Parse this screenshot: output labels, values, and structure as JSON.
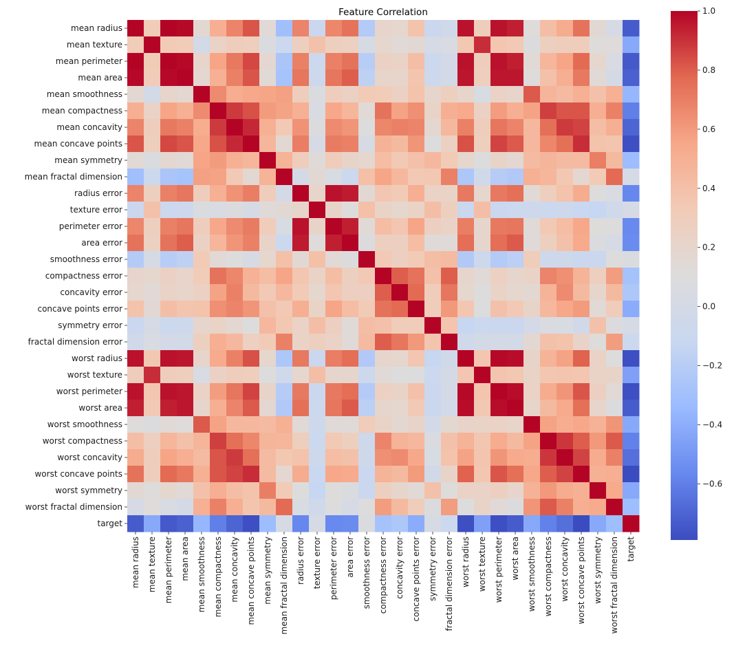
{
  "chart_data": {
    "type": "heatmap",
    "title": "Feature Correlation",
    "xlabel": "",
    "ylabel": "",
    "colormap": "coolwarm",
    "colormap_stops": [
      "#3b4cc0",
      "#6788ee",
      "#9abbff",
      "#c9d7f0",
      "#dddcdc",
      "#f2cbb7",
      "#f7a889",
      "#e26952",
      "#b40426"
    ],
    "vmin": -0.79,
    "vmax": 1.0,
    "colorbar_ticks": [
      1.0,
      0.8,
      0.6,
      0.4,
      0.2,
      0.0,
      -0.2,
      -0.4,
      -0.6
    ],
    "colorbar_tick_labels": [
      "1.0",
      "0.8",
      "0.6",
      "0.4",
      "0.2",
      "0.0",
      "−0.2",
      "−0.4",
      "−0.6"
    ],
    "colorbar_position": "right",
    "labels": [
      "mean radius",
      "mean texture",
      "mean perimeter",
      "mean area",
      "mean smoothness",
      "mean compactness",
      "mean concavity",
      "mean concave points",
      "mean symmetry",
      "mean fractal dimension",
      "radius error",
      "texture error",
      "perimeter error",
      "area error",
      "smoothness error",
      "compactness error",
      "concavity error",
      "concave points error",
      "symmetry error",
      "fractal dimension error",
      "worst radius",
      "worst texture",
      "worst perimeter",
      "worst area",
      "worst smoothness",
      "worst compactness",
      "worst concavity",
      "worst concave points",
      "worst symmetry",
      "worst fractal dimension",
      "target"
    ],
    "matrix": [
      [
        1.0,
        0.32,
        1.0,
        0.99,
        0.17,
        0.51,
        0.68,
        0.82,
        0.15,
        -0.31,
        0.68,
        -0.1,
        0.67,
        0.74,
        -0.22,
        0.21,
        0.19,
        0.38,
        -0.1,
        -0.04,
        0.97,
        0.3,
        0.97,
        0.94,
        0.12,
        0.41,
        0.53,
        0.74,
        0.16,
        0.01,
        -0.73
      ],
      [
        0.32,
        1.0,
        0.33,
        0.32,
        -0.02,
        0.24,
        0.3,
        0.29,
        0.07,
        -0.08,
        0.28,
        0.39,
        0.28,
        0.26,
        0.01,
        0.19,
        0.14,
        0.16,
        0.01,
        0.05,
        0.35,
        0.91,
        0.36,
        0.34,
        0.08,
        0.28,
        0.3,
        0.3,
        0.11,
        0.12,
        -0.42
      ],
      [
        1.0,
        0.33,
        1.0,
        0.99,
        0.21,
        0.56,
        0.72,
        0.85,
        0.18,
        -0.26,
        0.69,
        -0.09,
        0.69,
        0.74,
        -0.2,
        0.25,
        0.23,
        0.41,
        -0.08,
        -0.01,
        0.97,
        0.3,
        0.97,
        0.94,
        0.15,
        0.46,
        0.56,
        0.77,
        0.19,
        0.05,
        -0.74
      ],
      [
        0.99,
        0.32,
        0.99,
        1.0,
        0.18,
        0.5,
        0.69,
        0.82,
        0.15,
        -0.28,
        0.73,
        -0.07,
        0.73,
        0.8,
        -0.17,
        0.21,
        0.21,
        0.37,
        -0.07,
        -0.02,
        0.96,
        0.29,
        0.96,
        0.96,
        0.12,
        0.39,
        0.51,
        0.72,
        0.14,
        0.0,
        -0.71
      ],
      [
        0.17,
        -0.02,
        0.21,
        0.18,
        1.0,
        0.66,
        0.52,
        0.55,
        0.56,
        0.58,
        0.3,
        0.07,
        0.3,
        0.25,
        0.33,
        0.32,
        0.25,
        0.38,
        0.2,
        0.28,
        0.21,
        0.04,
        0.24,
        0.21,
        0.81,
        0.47,
        0.43,
        0.5,
        0.39,
        0.5,
        -0.36
      ],
      [
        0.51,
        0.24,
        0.56,
        0.5,
        0.66,
        1.0,
        0.88,
        0.83,
        0.6,
        0.57,
        0.5,
        0.05,
        0.55,
        0.46,
        0.14,
        0.74,
        0.57,
        0.64,
        0.23,
        0.51,
        0.54,
        0.25,
        0.59,
        0.51,
        0.57,
        0.87,
        0.82,
        0.82,
        0.51,
        0.69,
        -0.6
      ],
      [
        0.68,
        0.3,
        0.72,
        0.69,
        0.52,
        0.88,
        1.0,
        0.92,
        0.5,
        0.34,
        0.63,
        0.08,
        0.66,
        0.62,
        0.1,
        0.67,
        0.69,
        0.68,
        0.18,
        0.45,
        0.69,
        0.3,
        0.73,
        0.68,
        0.45,
        0.75,
        0.88,
        0.86,
        0.41,
        0.51,
        -0.7
      ],
      [
        0.82,
        0.29,
        0.85,
        0.82,
        0.55,
        0.83,
        0.92,
        1.0,
        0.46,
        0.17,
        0.7,
        0.02,
        0.71,
        0.69,
        0.03,
        0.49,
        0.44,
        0.62,
        0.1,
        0.26,
        0.83,
        0.29,
        0.86,
        0.81,
        0.45,
        0.67,
        0.75,
        0.91,
        0.38,
        0.37,
        -0.78
      ],
      [
        0.15,
        0.07,
        0.18,
        0.15,
        0.56,
        0.6,
        0.5,
        0.46,
        1.0,
        0.48,
        0.3,
        0.13,
        0.31,
        0.22,
        0.19,
        0.42,
        0.34,
        0.39,
        0.45,
        0.33,
        0.19,
        0.09,
        0.22,
        0.18,
        0.43,
        0.47,
        0.43,
        0.43,
        0.7,
        0.44,
        -0.33
      ],
      [
        -0.31,
        -0.08,
        -0.26,
        -0.28,
        0.58,
        0.57,
        0.34,
        0.17,
        0.48,
        1.0,
        0.0,
        0.16,
        0.04,
        -0.09,
        0.4,
        0.56,
        0.45,
        0.34,
        0.35,
        0.69,
        -0.25,
        -0.05,
        -0.21,
        -0.23,
        0.5,
        0.46,
        0.35,
        0.18,
        0.33,
        0.77,
        0.01
      ],
      [
        0.68,
        0.28,
        0.69,
        0.73,
        0.3,
        0.5,
        0.63,
        0.7,
        0.3,
        0.0,
        1.0,
        0.21,
        0.97,
        0.95,
        0.16,
        0.36,
        0.33,
        0.51,
        0.24,
        0.23,
        0.72,
        0.19,
        0.72,
        0.75,
        0.14,
        0.29,
        0.38,
        0.53,
        0.09,
        0.05,
        -0.57
      ],
      [
        -0.1,
        0.39,
        -0.09,
        -0.07,
        0.07,
        0.05,
        0.08,
        0.02,
        0.13,
        0.16,
        0.21,
        1.0,
        0.22,
        0.11,
        0.4,
        0.23,
        0.19,
        0.23,
        0.41,
        0.28,
        -0.11,
        0.41,
        -0.1,
        -0.08,
        -0.07,
        -0.09,
        -0.07,
        -0.12,
        -0.13,
        -0.05,
        0.01
      ],
      [
        0.67,
        0.28,
        0.69,
        0.73,
        0.3,
        0.55,
        0.66,
        0.71,
        0.31,
        0.04,
        0.97,
        0.22,
        1.0,
        0.94,
        0.15,
        0.42,
        0.36,
        0.56,
        0.27,
        0.24,
        0.7,
        0.2,
        0.72,
        0.73,
        0.13,
        0.34,
        0.42,
        0.55,
        0.11,
        0.09,
        -0.56
      ],
      [
        0.74,
        0.26,
        0.74,
        0.8,
        0.25,
        0.46,
        0.62,
        0.69,
        0.22,
        -0.09,
        0.95,
        0.11,
        0.94,
        1.0,
        0.08,
        0.28,
        0.27,
        0.42,
        0.13,
        0.13,
        0.76,
        0.2,
        0.76,
        0.81,
        0.13,
        0.28,
        0.39,
        0.54,
        0.07,
        0.02,
        -0.55
      ],
      [
        -0.22,
        0.01,
        -0.2,
        -0.17,
        0.33,
        0.14,
        0.1,
        0.03,
        0.19,
        0.4,
        0.16,
        0.4,
        0.15,
        0.08,
        1.0,
        0.34,
        0.27,
        0.33,
        0.41,
        0.43,
        -0.23,
        -0.07,
        -0.22,
        -0.18,
        0.31,
        -0.06,
        -0.06,
        -0.1,
        -0.11,
        0.1,
        0.07
      ],
      [
        0.21,
        0.19,
        0.25,
        0.21,
        0.32,
        0.74,
        0.67,
        0.49,
        0.42,
        0.56,
        0.36,
        0.23,
        0.42,
        0.28,
        0.34,
        1.0,
        0.8,
        0.74,
        0.39,
        0.8,
        0.2,
        0.14,
        0.26,
        0.2,
        0.23,
        0.68,
        0.64,
        0.48,
        0.28,
        0.59,
        -0.29
      ],
      [
        0.19,
        0.14,
        0.23,
        0.21,
        0.25,
        0.57,
        0.69,
        0.44,
        0.34,
        0.45,
        0.33,
        0.19,
        0.36,
        0.27,
        0.27,
        0.8,
        1.0,
        0.77,
        0.31,
        0.73,
        0.19,
        0.1,
        0.23,
        0.19,
        0.17,
        0.48,
        0.66,
        0.44,
        0.2,
        0.44,
        -0.25
      ],
      [
        0.38,
        0.16,
        0.41,
        0.37,
        0.38,
        0.64,
        0.68,
        0.62,
        0.39,
        0.34,
        0.51,
        0.23,
        0.56,
        0.42,
        0.33,
        0.74,
        0.77,
        1.0,
        0.31,
        0.61,
        0.36,
        0.09,
        0.39,
        0.34,
        0.22,
        0.45,
        0.55,
        0.6,
        0.14,
        0.31,
        -0.41
      ],
      [
        -0.1,
        0.01,
        -0.08,
        -0.07,
        0.2,
        0.23,
        0.18,
        0.1,
        0.45,
        0.35,
        0.24,
        0.41,
        0.27,
        0.13,
        0.41,
        0.39,
        0.31,
        0.31,
        1.0,
        0.37,
        -0.13,
        -0.08,
        -0.1,
        -0.11,
        -0.01,
        0.06,
        0.04,
        -0.03,
        0.39,
        0.08,
        0.01
      ],
      [
        -0.04,
        0.05,
        -0.01,
        -0.02,
        0.28,
        0.51,
        0.45,
        0.26,
        0.33,
        0.69,
        0.23,
        0.28,
        0.24,
        0.13,
        0.43,
        0.8,
        0.73,
        0.61,
        0.37,
        1.0,
        -0.04,
        -0.0,
        -0.0,
        -0.02,
        0.17,
        0.39,
        0.38,
        0.22,
        0.11,
        0.59,
        -0.08
      ],
      [
        0.97,
        0.35,
        0.97,
        0.96,
        0.21,
        0.54,
        0.69,
        0.83,
        0.19,
        -0.25,
        0.72,
        -0.11,
        0.7,
        0.76,
        -0.23,
        0.2,
        0.19,
        0.36,
        -0.13,
        -0.04,
        1.0,
        0.36,
        0.99,
        0.98,
        0.22,
        0.48,
        0.57,
        0.79,
        0.24,
        0.09,
        -0.78
      ],
      [
        0.3,
        0.91,
        0.3,
        0.29,
        0.04,
        0.25,
        0.3,
        0.29,
        0.09,
        -0.05,
        0.19,
        0.41,
        0.2,
        0.2,
        -0.07,
        0.14,
        0.1,
        0.09,
        -0.08,
        -0.0,
        0.36,
        1.0,
        0.37,
        0.35,
        0.23,
        0.36,
        0.37,
        0.36,
        0.23,
        0.22,
        -0.46
      ],
      [
        0.97,
        0.36,
        0.97,
        0.96,
        0.24,
        0.59,
        0.73,
        0.86,
        0.22,
        -0.21,
        0.72,
        -0.1,
        0.72,
        0.76,
        -0.22,
        0.26,
        0.23,
        0.39,
        -0.1,
        -0.0,
        0.99,
        0.37,
        1.0,
        0.98,
        0.24,
        0.53,
        0.62,
        0.82,
        0.27,
        0.14,
        -0.78
      ],
      [
        0.94,
        0.34,
        0.94,
        0.96,
        0.21,
        0.51,
        0.68,
        0.81,
        0.18,
        -0.23,
        0.75,
        -0.08,
        0.73,
        0.81,
        -0.18,
        0.2,
        0.19,
        0.34,
        -0.11,
        -0.02,
        0.98,
        0.35,
        0.98,
        1.0,
        0.21,
        0.44,
        0.54,
        0.75,
        0.21,
        0.08,
        -0.73
      ],
      [
        0.12,
        0.08,
        0.15,
        0.12,
        0.81,
        0.57,
        0.45,
        0.45,
        0.43,
        0.5,
        0.14,
        -0.07,
        0.13,
        0.13,
        0.31,
        0.23,
        0.17,
        0.22,
        -0.01,
        0.17,
        0.22,
        0.23,
        0.24,
        0.21,
        1.0,
        0.57,
        0.52,
        0.55,
        0.49,
        0.62,
        -0.42
      ],
      [
        0.41,
        0.28,
        0.46,
        0.39,
        0.47,
        0.87,
        0.75,
        0.67,
        0.47,
        0.46,
        0.29,
        -0.09,
        0.34,
        0.28,
        -0.06,
        0.68,
        0.48,
        0.45,
        0.06,
        0.39,
        0.48,
        0.36,
        0.53,
        0.44,
        0.57,
        1.0,
        0.89,
        0.8,
        0.61,
        0.81,
        -0.59
      ],
      [
        0.53,
        0.3,
        0.56,
        0.51,
        0.43,
        0.82,
        0.88,
        0.75,
        0.43,
        0.35,
        0.38,
        -0.07,
        0.42,
        0.39,
        -0.06,
        0.64,
        0.66,
        0.55,
        0.04,
        0.38,
        0.57,
        0.37,
        0.62,
        0.54,
        0.52,
        0.89,
        1.0,
        0.86,
        0.53,
        0.69,
        -0.66
      ],
      [
        0.74,
        0.3,
        0.77,
        0.72,
        0.5,
        0.82,
        0.86,
        0.91,
        0.43,
        0.18,
        0.53,
        -0.12,
        0.55,
        0.54,
        -0.1,
        0.48,
        0.44,
        0.6,
        -0.03,
        0.22,
        0.79,
        0.36,
        0.82,
        0.75,
        0.55,
        0.8,
        0.86,
        1.0,
        0.5,
        0.51,
        -0.79
      ],
      [
        0.16,
        0.11,
        0.19,
        0.14,
        0.39,
        0.51,
        0.41,
        0.38,
        0.7,
        0.33,
        0.09,
        -0.13,
        0.11,
        0.07,
        -0.11,
        0.28,
        0.2,
        0.14,
        0.39,
        0.11,
        0.24,
        0.23,
        0.27,
        0.21,
        0.49,
        0.61,
        0.53,
        0.5,
        1.0,
        0.54,
        -0.42
      ],
      [
        0.01,
        0.12,
        0.05,
        0.0,
        0.5,
        0.69,
        0.51,
        0.37,
        0.44,
        0.77,
        0.05,
        -0.05,
        0.09,
        0.02,
        0.1,
        0.59,
        0.44,
        0.31,
        0.08,
        0.59,
        0.09,
        0.22,
        0.14,
        0.08,
        0.62,
        0.81,
        0.69,
        0.51,
        0.54,
        1.0,
        -0.32
      ],
      [
        -0.73,
        -0.42,
        -0.74,
        -0.71,
        -0.36,
        -0.6,
        -0.7,
        -0.78,
        -0.33,
        0.01,
        -0.57,
        0.01,
        -0.56,
        -0.55,
        0.07,
        -0.29,
        -0.25,
        -0.41,
        0.01,
        -0.08,
        -0.78,
        -0.46,
        -0.78,
        -0.73,
        -0.42,
        -0.59,
        -0.66,
        -0.79,
        -0.42,
        -0.32,
        1.0
      ]
    ]
  }
}
